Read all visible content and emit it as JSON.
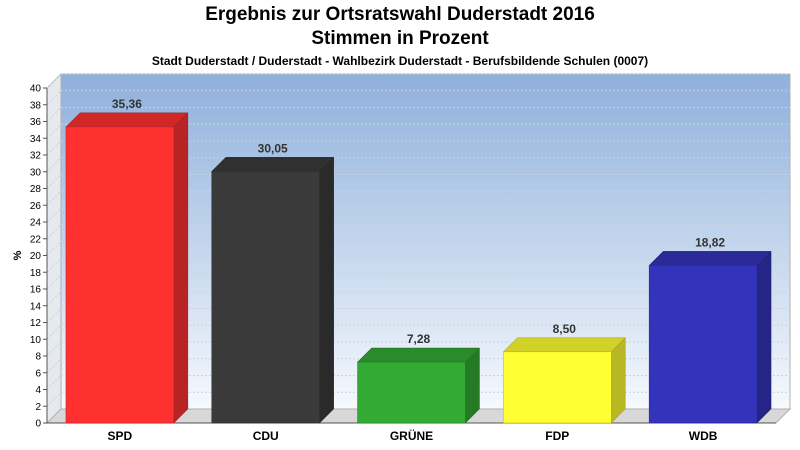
{
  "chart_data": {
    "type": "bar",
    "title": "Ergebnis zur Ortsratswahl Duderstadt 2016",
    "subtitle_line": "Stimmen in Prozent",
    "subtitle": "Stadt Duderstadt / Duderstadt - Wahlbezirk Duderstadt - Berufsbildende Schulen (0007)",
    "ylabel": "%",
    "xlabel": "",
    "ylim": [
      0,
      40
    ],
    "ytick_step": 2,
    "grid": true,
    "categories": [
      "SPD",
      "CDU",
      "GRÜNE",
      "FDP",
      "WDB"
    ],
    "values": [
      35.36,
      30.05,
      7.28,
      8.5,
      18.82
    ],
    "value_labels": [
      "35,36",
      "30,05",
      "7,28",
      "8,50",
      "18,82"
    ],
    "colors": [
      "#ff3030",
      "#3a3a3a",
      "#33aa33",
      "#ffff33",
      "#3333bb"
    ]
  }
}
